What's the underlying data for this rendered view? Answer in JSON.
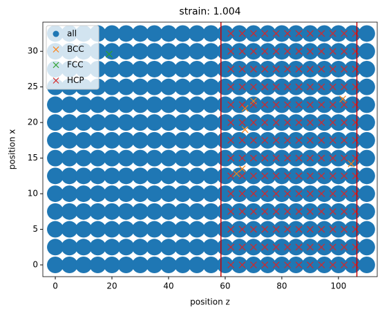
{
  "chart_data": {
    "type": "scatter",
    "title": "strain: 1.004",
    "x_label": "position z",
    "y_label": "position x",
    "xlim": [
      -4.4,
      113.7
    ],
    "ylim": [
      -1.65,
      34.1
    ],
    "xticks": [
      0,
      20,
      40,
      60,
      80,
      100
    ],
    "yticks": [
      0,
      5,
      10,
      15,
      20,
      25,
      30
    ],
    "grid": false,
    "legend": "upper left",
    "vlines": [
      58.5,
      106.5
    ],
    "vline_color": "#cc0000",
    "series": [
      {
        "name": "all",
        "color": "#1f77b4",
        "marker": "o",
        "x": [
          0,
          5,
          10,
          15,
          20,
          25,
          30,
          35,
          40,
          45,
          50,
          55,
          60,
          65,
          70,
          75,
          80,
          85,
          90,
          95,
          100,
          105,
          110,
          0,
          5,
          10,
          15,
          20,
          25,
          30,
          35,
          40,
          45,
          50,
          55,
          60,
          65,
          70,
          75,
          80,
          85,
          90,
          95,
          100,
          105,
          110,
          0,
          5,
          10,
          15,
          20,
          25,
          30,
          35,
          40,
          45,
          50,
          55,
          60,
          65,
          70,
          75,
          80,
          85,
          90,
          95,
          100,
          105,
          110,
          0,
          5,
          10,
          15,
          20,
          25,
          30,
          35,
          40,
          45,
          50,
          55,
          60,
          65,
          70,
          75,
          80,
          85,
          90,
          95,
          100,
          105,
          110,
          0,
          5,
          10,
          15,
          20,
          25,
          30,
          35,
          40,
          45,
          50,
          55,
          60,
          65,
          70,
          75,
          80,
          85,
          90,
          95,
          100,
          105,
          110,
          0,
          5,
          10,
          15,
          20,
          25,
          30,
          35,
          40,
          45,
          50,
          55,
          60,
          65,
          70,
          75,
          80,
          85,
          90,
          95,
          100,
          105,
          110,
          0,
          5,
          10,
          15,
          20,
          25,
          30,
          35,
          40,
          45,
          50,
          55,
          60,
          65,
          70,
          75,
          80,
          85,
          90,
          95,
          100,
          105,
          110,
          0,
          5,
          10,
          15,
          20,
          25,
          30,
          35,
          40,
          45,
          50,
          55,
          60,
          65,
          70,
          75,
          80,
          85,
          90,
          95,
          100,
          105,
          110,
          0,
          5,
          10,
          15,
          20,
          25,
          30,
          35,
          40,
          45,
          50,
          55,
          60,
          65,
          70,
          75,
          80,
          85,
          90,
          95,
          100,
          105,
          110,
          0,
          5,
          10,
          15,
          20,
          25,
          30,
          35,
          40,
          45,
          50,
          55,
          60,
          65,
          70,
          75,
          80,
          85,
          90,
          95,
          100,
          105,
          110,
          0,
          5,
          10,
          15,
          20,
          25,
          30,
          35,
          40,
          45,
          50,
          55,
          60,
          65,
          70,
          75,
          80,
          85,
          90,
          95,
          100,
          105,
          110,
          0,
          5,
          10,
          15,
          20,
          25,
          30,
          35,
          40,
          45,
          50,
          55,
          60,
          65,
          70,
          75,
          80,
          85,
          90,
          95,
          100,
          105,
          110,
          0,
          5,
          10,
          15,
          20,
          25,
          30,
          35,
          40,
          45,
          50,
          55,
          60,
          65,
          70,
          75,
          80,
          85,
          90,
          95,
          100,
          105,
          110,
          0,
          5,
          10,
          15,
          20,
          25,
          30,
          35,
          40,
          45,
          50,
          55,
          60,
          65,
          70,
          75,
          80,
          85,
          90,
          95,
          100,
          105,
          110
        ],
        "values": [
          0,
          0,
          0,
          0,
          0,
          0,
          0,
          0,
          0,
          0,
          0,
          0,
          0,
          0,
          0,
          0,
          0,
          0,
          0,
          0,
          0,
          0,
          0,
          2.5,
          2.5,
          2.5,
          2.5,
          2.5,
          2.5,
          2.5,
          2.5,
          2.5,
          2.5,
          2.5,
          2.5,
          2.5,
          2.5,
          2.5,
          2.5,
          2.5,
          2.5,
          2.5,
          2.5,
          2.5,
          2.5,
          2.5,
          5,
          5,
          5,
          5,
          5,
          5,
          5,
          5,
          5,
          5,
          5,
          5,
          5,
          5,
          5,
          5,
          5,
          5,
          5,
          5,
          5,
          5,
          5,
          7.5,
          7.5,
          7.5,
          7.5,
          7.5,
          7.5,
          7.5,
          7.5,
          7.5,
          7.5,
          7.5,
          7.5,
          7.5,
          7.5,
          7.5,
          7.5,
          7.5,
          7.5,
          7.5,
          7.5,
          7.5,
          7.5,
          7.5,
          10,
          10,
          10,
          10,
          10,
          10,
          10,
          10,
          10,
          10,
          10,
          10,
          10,
          10,
          10,
          10,
          10,
          10,
          10,
          10,
          10,
          10,
          10,
          12.5,
          12.5,
          12.5,
          12.5,
          12.5,
          12.5,
          12.5,
          12.5,
          12.5,
          12.5,
          12.5,
          12.5,
          12.5,
          12.5,
          12.5,
          12.5,
          12.5,
          12.5,
          12.5,
          12.5,
          12.5,
          12.5,
          12.5,
          15,
          15,
          15,
          15,
          15,
          15,
          15,
          15,
          15,
          15,
          15,
          15,
          15,
          15,
          15,
          15,
          15,
          15,
          15,
          15,
          15,
          15,
          15,
          17.5,
          17.5,
          17.5,
          17.5,
          17.5,
          17.5,
          17.5,
          17.5,
          17.5,
          17.5,
          17.5,
          17.5,
          17.5,
          17.5,
          17.5,
          17.5,
          17.5,
          17.5,
          17.5,
          17.5,
          17.5,
          17.5,
          17.5,
          20,
          20,
          20,
          20,
          20,
          20,
          20,
          20,
          20,
          20,
          20,
          20,
          20,
          20,
          20,
          20,
          20,
          20,
          20,
          20,
          20,
          20,
          20,
          22.5,
          22.5,
          22.5,
          22.5,
          22.5,
          22.5,
          22.5,
          22.5,
          22.5,
          22.5,
          22.5,
          22.5,
          22.5,
          22.5,
          22.5,
          22.5,
          22.5,
          22.5,
          22.5,
          22.5,
          22.5,
          22.5,
          22.5,
          25,
          25,
          25,
          25,
          25,
          25,
          25,
          25,
          25,
          25,
          25,
          25,
          25,
          25,
          25,
          25,
          25,
          25,
          25,
          25,
          25,
          25,
          25,
          27.5,
          27.5,
          27.5,
          27.5,
          27.5,
          27.5,
          27.5,
          27.5,
          27.5,
          27.5,
          27.5,
          27.5,
          27.5,
          27.5,
          27.5,
          27.5,
          27.5,
          27.5,
          27.5,
          27.5,
          27.5,
          27.5,
          27.5,
          30,
          30,
          30,
          30,
          30,
          30,
          30,
          30,
          30,
          30,
          30,
          30,
          30,
          30,
          30,
          30,
          30,
          30,
          30,
          30,
          30,
          30,
          30,
          32.5,
          32.5,
          32.5,
          32.5,
          32.5,
          32.5,
          32.5,
          32.5,
          32.5,
          32.5,
          32.5,
          32.5,
          32.5,
          32.5,
          32.5,
          32.5,
          32.5,
          32.5,
          32.5,
          32.5,
          32.5,
          32.5,
          32.5
        ]
      },
      {
        "name": "BCC",
        "color": "#ff7f0e",
        "marker": "x",
        "x": [
          67,
          70,
          101.5,
          104.5,
          64,
          66,
          67
        ],
        "values": [
          22,
          23,
          23.3,
          14.2,
          12.8,
          13.5,
          19
        ]
      },
      {
        "name": "FCC",
        "color": "#2ca02c",
        "marker": "x",
        "x": [
          19
        ],
        "values": [
          29.6
        ]
      },
      {
        "name": "HCP",
        "color": "#d62728",
        "marker": "x",
        "x": [
          62,
          66,
          70,
          74,
          78,
          82,
          86,
          90,
          94,
          98,
          102,
          106,
          62,
          66,
          70,
          74,
          78,
          82,
          86,
          90,
          94,
          98,
          102,
          106,
          62,
          66,
          70,
          74,
          78,
          82,
          86,
          90,
          94,
          98,
          102,
          106,
          62,
          66,
          70,
          74,
          78,
          82,
          86,
          90,
          94,
          98,
          102,
          106,
          62,
          66,
          70,
          74,
          78,
          82,
          86,
          90,
          94,
          98,
          102,
          106,
          62,
          66,
          70,
          74,
          78,
          82,
          86,
          90,
          94,
          98,
          102,
          106,
          62,
          66,
          70,
          74,
          78,
          82,
          86,
          90,
          94,
          98,
          102,
          106,
          62,
          66,
          70,
          74,
          78,
          82,
          86,
          90,
          94,
          98,
          102,
          106,
          62,
          66,
          70,
          74,
          78,
          82,
          86,
          90,
          94,
          98,
          102,
          106,
          62,
          66,
          70,
          74,
          78,
          82,
          86,
          90,
          94,
          98,
          102,
          106,
          62,
          66,
          70,
          74,
          78,
          82,
          86,
          90,
          94,
          98,
          102,
          106,
          62,
          66,
          70,
          74,
          78,
          82,
          86,
          90,
          94,
          98,
          102,
          106,
          62,
          66,
          70,
          74,
          78,
          82,
          86,
          90,
          94,
          98,
          102,
          106,
          62,
          66,
          70,
          74,
          78,
          82,
          86,
          90,
          94,
          98,
          102,
          106
        ],
        "values": [
          0,
          0,
          0,
          0,
          0,
          0,
          0,
          0,
          0,
          0,
          0,
          0,
          2.5,
          2.5,
          2.5,
          2.5,
          2.5,
          2.5,
          2.5,
          2.5,
          2.5,
          2.5,
          2.5,
          2.5,
          5,
          5,
          5,
          5,
          5,
          5,
          5,
          5,
          5,
          5,
          5,
          5,
          7.5,
          7.5,
          7.5,
          7.5,
          7.5,
          7.5,
          7.5,
          7.5,
          7.5,
          7.5,
          7.5,
          7.5,
          10,
          10,
          10,
          10,
          10,
          10,
          10,
          10,
          10,
          10,
          10,
          10,
          12.5,
          12.5,
          12.5,
          12.5,
          12.5,
          12.5,
          12.5,
          12.5,
          12.5,
          12.5,
          12.5,
          12.5,
          15,
          15,
          15,
          15,
          15,
          15,
          15,
          15,
          15,
          15,
          15,
          15,
          17.5,
          17.5,
          17.5,
          17.5,
          17.5,
          17.5,
          17.5,
          17.5,
          17.5,
          17.5,
          17.5,
          17.5,
          20,
          20,
          20,
          20,
          20,
          20,
          20,
          20,
          20,
          20,
          20,
          20,
          22.5,
          22.5,
          22.5,
          22.5,
          22.5,
          22.5,
          22.5,
          22.5,
          22.5,
          22.5,
          22.5,
          22.5,
          25,
          25,
          25,
          25,
          25,
          25,
          25,
          25,
          25,
          25,
          25,
          25,
          27.5,
          27.5,
          27.5,
          27.5,
          27.5,
          27.5,
          27.5,
          27.5,
          27.5,
          27.5,
          27.5,
          27.5,
          30,
          30,
          30,
          30,
          30,
          30,
          30,
          30,
          30,
          30,
          30,
          30,
          32.5,
          32.5,
          32.5,
          32.5,
          32.5,
          32.5,
          32.5,
          32.5,
          32.5,
          32.5,
          32.5,
          32.5
        ]
      }
    ]
  }
}
